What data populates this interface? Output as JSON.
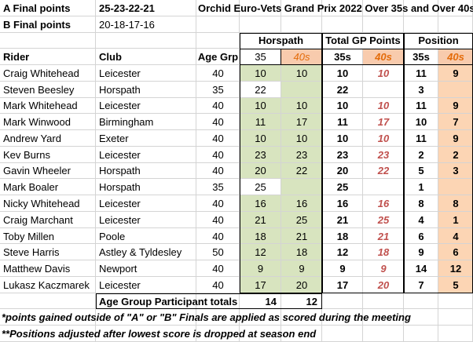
{
  "header": {
    "a_final_label": "A Final points",
    "a_final_points": "25-23-22-21",
    "b_final_label": "B Final points",
    "b_final_points": "20-18-17-16",
    "title": "Orchid Euro-Vets Grand Prix 2022 Over 35s and Over 40s"
  },
  "table": {
    "groups": [
      "Horspath",
      "Total GP Points",
      "Position"
    ],
    "columns": [
      "Rider",
      "Club",
      "Age Grp",
      "35",
      "40s",
      "35s",
      "40s",
      "35s",
      "40s"
    ],
    "rows": [
      [
        "Craig Whitehead",
        "Leicester",
        40,
        10,
        10,
        10,
        10,
        11,
        9
      ],
      [
        "Steven Beesley",
        "Horspath",
        35,
        22,
        null,
        22,
        null,
        3,
        null
      ],
      [
        "Mark Whitehead",
        "Leicester",
        40,
        10,
        10,
        10,
        10,
        11,
        9
      ],
      [
        "Mark Winwood",
        "Birmingham",
        40,
        11,
        17,
        11,
        17,
        10,
        7
      ],
      [
        "Andrew Yard",
        "Exeter",
        40,
        10,
        10,
        10,
        10,
        11,
        9
      ],
      [
        "Kev Burns",
        "Leicester",
        40,
        23,
        23,
        23,
        23,
        2,
        2
      ],
      [
        "Gavin Wheeler",
        "Horspath",
        40,
        20,
        22,
        20,
        22,
        5,
        3
      ],
      [
        "Mark Boaler",
        "Horspath",
        35,
        25,
        null,
        25,
        null,
        1,
        null
      ],
      [
        "Nicky Whitehead",
        "Leicester",
        40,
        16,
        16,
        16,
        16,
        8,
        8
      ],
      [
        "Craig Marchant",
        "Leicester",
        40,
        21,
        25,
        21,
        25,
        4,
        1
      ],
      [
        "Toby Millen",
        "Poole",
        40,
        18,
        21,
        18,
        21,
        6,
        4
      ],
      [
        "Steve Harris",
        "Astley & Tyldesley",
        50,
        12,
        18,
        12,
        18,
        9,
        6
      ],
      [
        "Matthew Davis",
        "Newport",
        40,
        9,
        9,
        9,
        9,
        14,
        12
      ],
      [
        "Lukasz Kaczmarek",
        "Leicester",
        40,
        17,
        20,
        17,
        20,
        7,
        5
      ]
    ],
    "totals": {
      "label": "Age Group Participant totals",
      "values": [
        14,
        12
      ]
    }
  },
  "notes": [
    "*points gained outside of \"A\" or \"B\" Finals are applied as scored during the meeting",
    "**Positions adjusted after lowest score is dropped at season end"
  ]
}
